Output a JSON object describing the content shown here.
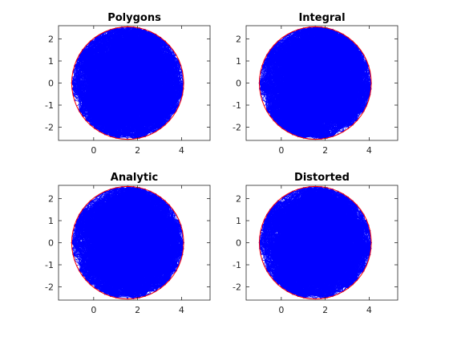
{
  "chart_data": [
    {
      "type": "mesh",
      "title": "Polygons",
      "xlim": [
        -1.6,
        5.3
      ],
      "ylim": [
        -2.6,
        2.6
      ],
      "xticks": [
        0,
        2,
        4
      ],
      "yticks": [
        -2,
        -1,
        0,
        1,
        2
      ],
      "boundary": {
        "center": [
          1.55,
          0
        ],
        "radius": 2.55,
        "notch_x": 0.05,
        "notch_depth": 0.45,
        "edges": 60
      },
      "mesh_seed": 11
    },
    {
      "type": "mesh",
      "title": "Integral",
      "xlim": [
        -1.6,
        5.3
      ],
      "ylim": [
        -2.6,
        2.6
      ],
      "xticks": [
        0,
        2,
        4
      ],
      "yticks": [
        -2,
        -1,
        0,
        1,
        2
      ],
      "boundary": {
        "center": [
          1.55,
          0
        ],
        "radius": 2.55,
        "notch_x": 0.05,
        "notch_depth": 0.45,
        "edges": 60
      },
      "mesh_seed": 23
    },
    {
      "type": "mesh",
      "title": "Analytic",
      "xlim": [
        -1.6,
        5.3
      ],
      "ylim": [
        -2.6,
        2.6
      ],
      "xticks": [
        0,
        2,
        4
      ],
      "yticks": [
        -2,
        -1,
        0,
        1,
        2
      ],
      "boundary": {
        "center": [
          1.55,
          0
        ],
        "radius": 2.55,
        "notch_x": 0.05,
        "notch_depth": 0.45,
        "edges": 60
      },
      "mesh_seed": 37
    },
    {
      "type": "mesh",
      "title": "Distorted",
      "xlim": [
        -1.6,
        5.3
      ],
      "ylim": [
        -2.6,
        2.6
      ],
      "xticks": [
        0,
        2,
        4
      ],
      "yticks": [
        -2,
        -1,
        0,
        1,
        2
      ],
      "boundary": {
        "center": [
          1.55,
          0
        ],
        "radius": 2.55,
        "notch_x": 0.05,
        "notch_depth": 0.45,
        "edges": 60
      },
      "mesh_seed": 53
    }
  ],
  "colors": {
    "boundary": "#ff0000",
    "mesh": "#0000ff",
    "axes": "#262626"
  }
}
